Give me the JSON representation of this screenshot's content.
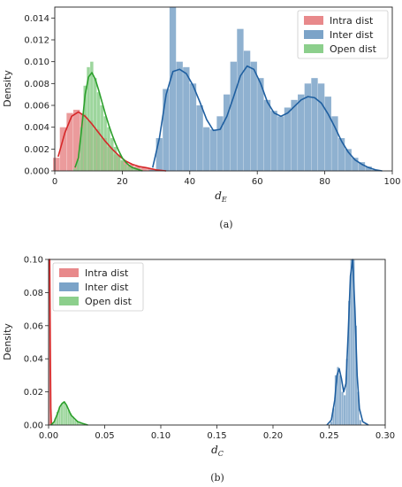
{
  "chart_data": [
    {
      "type": "histogram",
      "caption": "(a)",
      "xlabel": "d",
      "xlabel_sub": "E",
      "ylabel": "Density",
      "xlim": [
        0,
        100
      ],
      "ylim": [
        0,
        0.015
      ],
      "xticks": [
        0,
        20,
        40,
        60,
        80,
        100
      ],
      "xtick_labels": [
        "0",
        "20",
        "40",
        "60",
        "80",
        "100"
      ],
      "yticks": [
        0,
        0.002,
        0.004,
        0.006,
        0.008,
        0.01,
        0.012,
        0.014
      ],
      "ytick_labels": [
        "0.000",
        "0.002",
        "0.004",
        "0.006",
        "0.008",
        "0.010",
        "0.012",
        "0.014"
      ],
      "legend_position": "top-right",
      "series": [
        {
          "name": "Intra dist",
          "color": "#d62728",
          "fill": "#e8898b",
          "x": [
            0.5,
            2.5,
            4.5,
            6.5,
            8.5,
            10.5,
            12.5,
            14.5,
            16.5,
            18.5,
            20.5,
            22.5,
            24.5,
            26.5,
            28.5,
            30.5,
            32.5
          ],
          "y": [
            0.0012,
            0.004,
            0.0053,
            0.0056,
            0.0052,
            0.0046,
            0.0038,
            0.003,
            0.0022,
            0.0015,
            0.0009,
            0.0006,
            0.0004,
            0.0003,
            0.0002,
            0.0001,
            0.0
          ]
        },
        {
          "name": "Inter dist",
          "color": "#1f5fa0",
          "fill": "#7ba3c8",
          "x": [
            29,
            31,
            33,
            35,
            37,
            39,
            41,
            43,
            45,
            47,
            49,
            51,
            53,
            55,
            57,
            59,
            61,
            63,
            65,
            67,
            69,
            71,
            73,
            75,
            77,
            79,
            81,
            83,
            85,
            87,
            89,
            91,
            93,
            95,
            97
          ],
          "y": [
            0.0001,
            0.003,
            0.0075,
            0.015,
            0.01,
            0.0095,
            0.008,
            0.006,
            0.004,
            0.0038,
            0.005,
            0.007,
            0.01,
            0.013,
            0.011,
            0.01,
            0.0085,
            0.0065,
            0.0055,
            0.005,
            0.0058,
            0.0065,
            0.007,
            0.008,
            0.0085,
            0.008,
            0.0068,
            0.005,
            0.003,
            0.002,
            0.0012,
            0.0008,
            0.0004,
            0.0001,
            0.0
          ]
        },
        {
          "name": "Open dist",
          "color": "#2ca02c",
          "fill": "#8ccf8c",
          "x": [
            6,
            7,
            8,
            9,
            10,
            11,
            12,
            13,
            14,
            15,
            16,
            17,
            18,
            19,
            20,
            21,
            22,
            23,
            24,
            25,
            26
          ],
          "y": [
            0.0002,
            0.001,
            0.004,
            0.0078,
            0.0095,
            0.01,
            0.0085,
            0.0072,
            0.006,
            0.005,
            0.004,
            0.003,
            0.0022,
            0.0015,
            0.001,
            0.0006,
            0.0004,
            0.0003,
            0.0002,
            0.0001,
            0.0
          ]
        }
      ],
      "kde": [
        {
          "name": "Intra dist",
          "color": "#d62728",
          "x": [
            1,
            3,
            5,
            7,
            9,
            11,
            13,
            15,
            17,
            19,
            21,
            23,
            25,
            27,
            30,
            33
          ],
          "y": [
            0.0013,
            0.0035,
            0.005,
            0.0054,
            0.005,
            0.0043,
            0.0035,
            0.0027,
            0.002,
            0.0014,
            0.0009,
            0.0006,
            0.0004,
            0.0003,
            0.0001,
            0.0
          ]
        },
        {
          "name": "Inter dist",
          "color": "#1f5fa0",
          "x": [
            29,
            31,
            33,
            35,
            37,
            39,
            41,
            43,
            45,
            47,
            49,
            51,
            53,
            55,
            57,
            59,
            61,
            63,
            65,
            67,
            69,
            71,
            73,
            75,
            77,
            79,
            81,
            83,
            85,
            87,
            89,
            91,
            93,
            95,
            97
          ],
          "y": [
            0.0003,
            0.003,
            0.007,
            0.0091,
            0.0093,
            0.0089,
            0.0078,
            0.0063,
            0.0047,
            0.0037,
            0.0038,
            0.005,
            0.0068,
            0.0087,
            0.0096,
            0.0093,
            0.008,
            0.0063,
            0.0053,
            0.005,
            0.0053,
            0.0059,
            0.0065,
            0.0068,
            0.0067,
            0.0062,
            0.0052,
            0.004,
            0.0027,
            0.0017,
            0.001,
            0.0006,
            0.0003,
            0.0001,
            0.0
          ]
        },
        {
          "name": "Open dist",
          "color": "#2ca02c",
          "x": [
            6,
            7,
            8,
            9,
            10,
            11,
            12,
            13,
            14,
            15,
            16,
            17,
            18,
            19,
            20,
            21,
            22,
            23,
            24,
            25,
            26
          ],
          "y": [
            0.0003,
            0.0012,
            0.004,
            0.007,
            0.0086,
            0.009,
            0.0084,
            0.0074,
            0.0063,
            0.0052,
            0.0042,
            0.0033,
            0.0025,
            0.0018,
            0.0012,
            0.0008,
            0.0005,
            0.0003,
            0.0002,
            0.0001,
            0.0
          ]
        }
      ]
    },
    {
      "type": "histogram",
      "caption": "(b)",
      "xlabel": "d",
      "xlabel_sub": "C",
      "ylabel": "Density",
      "xlim": [
        0,
        0.3
      ],
      "ylim": [
        0,
        0.1
      ],
      "xticks": [
        0,
        0.05,
        0.1,
        0.15,
        0.2,
        0.25,
        0.3
      ],
      "xtick_labels": [
        "0.00",
        "0.05",
        "0.10",
        "0.15",
        "0.20",
        "0.25",
        "0.30"
      ],
      "yticks": [
        0,
        0.02,
        0.04,
        0.06,
        0.08,
        0.1
      ],
      "ytick_labels": [
        "0.00",
        "0.02",
        "0.04",
        "0.06",
        "0.08",
        "0.10"
      ],
      "legend_position": "top-left",
      "series": [
        {
          "name": "Intra dist",
          "color": "#d62728",
          "fill": "#e8898b",
          "x": [
            0.0002,
            0.0006,
            0.001,
            0.0014,
            0.0018
          ],
          "y": [
            0.1,
            0.1,
            0.1,
            0.06,
            0.02
          ]
        },
        {
          "name": "Inter dist",
          "color": "#1f5fa0",
          "fill": "#7ba3c8",
          "x": [
            0.252,
            0.254,
            0.256,
            0.258,
            0.26,
            0.262,
            0.264,
            0.266,
            0.268,
            0.27,
            0.272,
            0.274,
            0.276,
            0.278
          ],
          "y": [
            0.002,
            0.01,
            0.03,
            0.035,
            0.03,
            0.02,
            0.018,
            0.04,
            0.075,
            0.1,
            0.1,
            0.06,
            0.02,
            0.003
          ]
        },
        {
          "name": "Open dist",
          "color": "#2ca02c",
          "fill": "#8ccf8c",
          "x": [
            0.004,
            0.006,
            0.008,
            0.01,
            0.012,
            0.014,
            0.016,
            0.018,
            0.02,
            0.022,
            0.024,
            0.026,
            0.028,
            0.03
          ],
          "y": [
            0.001,
            0.004,
            0.008,
            0.011,
            0.013,
            0.014,
            0.012,
            0.009,
            0.007,
            0.005,
            0.003,
            0.002,
            0.001,
            0.0005
          ]
        }
      ],
      "kde": [
        {
          "name": "Intra dist",
          "color": "#d62728",
          "x": [
            0,
            0.0005,
            0.001,
            0.0015,
            0.002,
            0.0025
          ],
          "y": [
            0.1,
            0.1,
            0.1,
            0.05,
            0.01,
            0
          ]
        },
        {
          "name": "Inter dist",
          "color": "#1f5fa0",
          "x": [
            0.248,
            0.252,
            0.255,
            0.257,
            0.259,
            0.261,
            0.263,
            0.265,
            0.267,
            0.269,
            0.271,
            0.273,
            0.275,
            0.277,
            0.28,
            0.285
          ],
          "y": [
            0,
            0.003,
            0.015,
            0.03,
            0.034,
            0.028,
            0.02,
            0.025,
            0.055,
            0.09,
            0.1,
            0.07,
            0.03,
            0.01,
            0.002,
            0
          ]
        },
        {
          "name": "Open dist",
          "color": "#2ca02c",
          "x": [
            0.002,
            0.005,
            0.008,
            0.01,
            0.012,
            0.014,
            0.016,
            0.018,
            0.02,
            0.023,
            0.026,
            0.03,
            0.035
          ],
          "y": [
            0,
            0.002,
            0.007,
            0.011,
            0.013,
            0.014,
            0.012,
            0.009,
            0.006,
            0.004,
            0.002,
            0.001,
            0
          ]
        }
      ]
    }
  ]
}
